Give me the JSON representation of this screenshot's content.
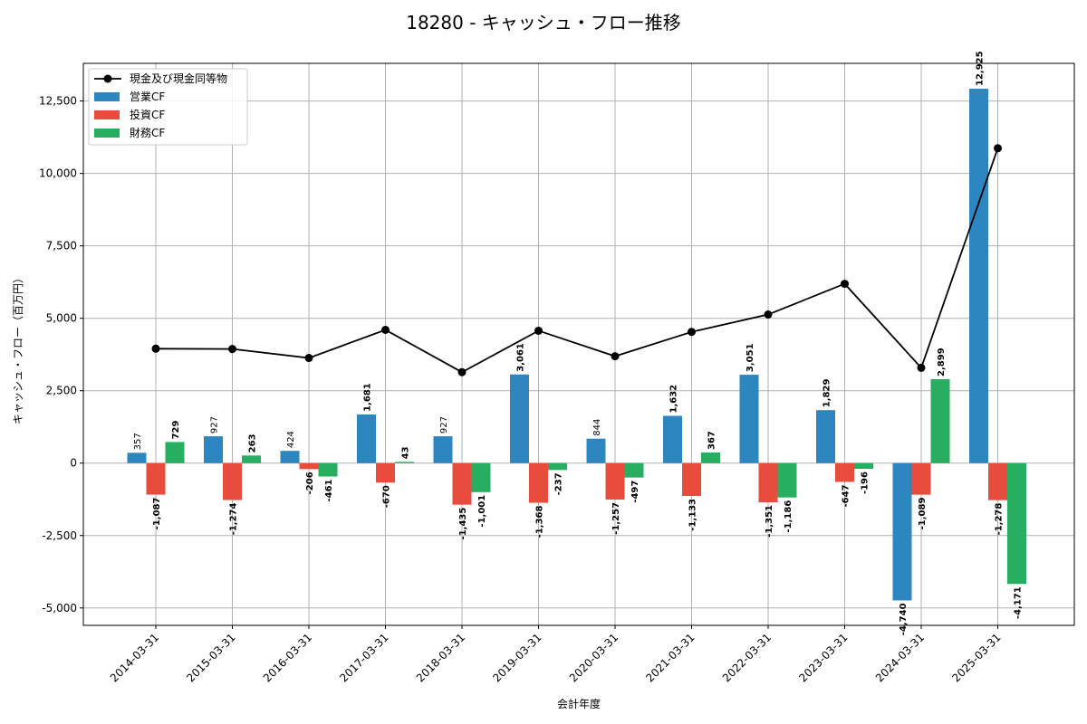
{
  "chart_data": {
    "type": "bar",
    "title": "18280 - キャッシュ・フロー推移",
    "xlabel": "会計年度",
    "ylabel": "キャッシュ・フロー（百万円）",
    "ylim": [
      -5600,
      13800
    ],
    "yticks": [
      -5000,
      -2500,
      0,
      2500,
      5000,
      7500,
      10000,
      12500
    ],
    "ytick_labels": [
      "-5,000",
      "-2,500",
      "0",
      "2,500",
      "5,000",
      "7,500",
      "10,000",
      "12,500"
    ],
    "grid": true,
    "legend_position": "top-left",
    "categories": [
      "2014-03-31",
      "2015-03-31",
      "2016-03-31",
      "2017-03-31",
      "2018-03-31",
      "2019-03-31",
      "2020-03-31",
      "2021-03-31",
      "2022-03-31",
      "2023-03-31",
      "2024-03-31",
      "2025-03-31"
    ],
    "series": [
      {
        "name": "営業CF",
        "kind": "bar",
        "color": "#2e86c1",
        "values": [
          357,
          927,
          424,
          1681,
          927,
          3061,
          844,
          1632,
          3051,
          1829,
          -4740,
          12925
        ],
        "labels": [
          "357",
          "927",
          "424",
          "1,681",
          "927",
          "3,061",
          "844",
          "1,632",
          "3,051",
          "1,829",
          "-4,740",
          "12,925"
        ]
      },
      {
        "name": "投資CF",
        "kind": "bar",
        "color": "#e74c3c",
        "values": [
          -1087,
          -1274,
          -206,
          -670,
          -1435,
          -1368,
          -1257,
          -1133,
          -1351,
          -647,
          -1089,
          -1278
        ],
        "labels": [
          "-1,087",
          "-1,274",
          "-206",
          "-670",
          "-1,435",
          "-1,368",
          "-1,257",
          "-1,133",
          "-1,351",
          "-647",
          "-1,089",
          "-1,278"
        ]
      },
      {
        "name": "財務CF",
        "kind": "bar",
        "color": "#27ae60",
        "values": [
          729,
          263,
          -461,
          43,
          -1001,
          -237,
          -497,
          367,
          -1186,
          -196,
          2899,
          -4171
        ],
        "labels": [
          "729",
          "263",
          "-461",
          "43",
          "-1,001",
          "-237",
          "-497",
          "367",
          "-1,186",
          "-196",
          "2,899",
          "-4,171"
        ]
      },
      {
        "name": "現金及び現金同等物",
        "kind": "line",
        "color": "#000000",
        "values": [
          3950,
          3940,
          3630,
          4600,
          3140,
          4570,
          3690,
          4530,
          5130,
          6190,
          3290,
          10870
        ]
      }
    ]
  }
}
